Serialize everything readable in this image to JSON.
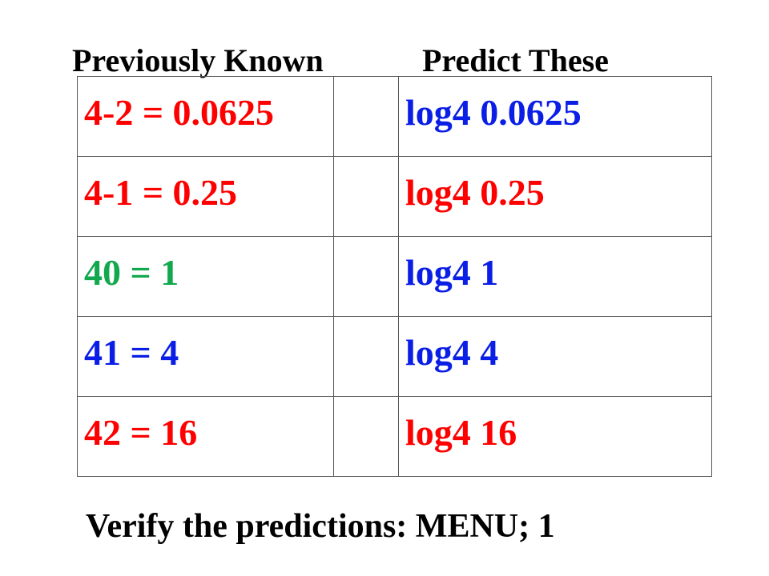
{
  "headers": [
    "Previously Known",
    "Predict These"
  ],
  "table": {
    "rows": [
      [
        "4-2 = 0.0625",
        "log4 0.0625"
      ],
      [
        "4-1 = 0.25",
        "log4 0.25"
      ],
      [
        "40 = 1",
        "log4 1"
      ],
      [
        "41 = 4",
        "log4 4"
      ],
      [
        "42 = 16",
        "log4 16"
      ]
    ]
  },
  "footer": "Verify the predictions: MENU; 1"
}
